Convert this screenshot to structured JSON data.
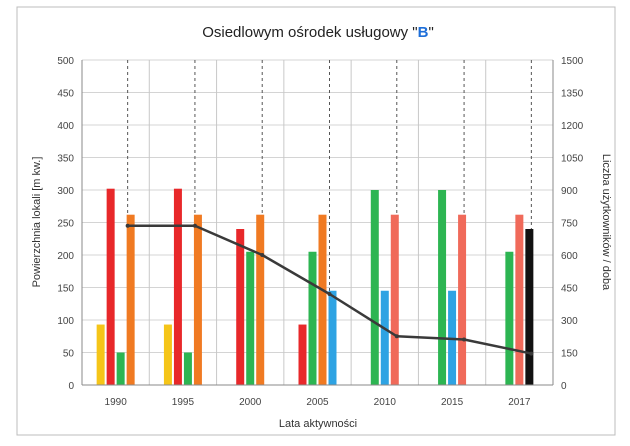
{
  "chart_data": {
    "type": "bar",
    "title_main": "Osiedlowym ośrodek usługowy \"",
    "title_letter": "B",
    "title_end": "\"",
    "xlabel": "Lata aktywności",
    "ylabel": "Powierzchnia lokali [m kw.]",
    "ylabel_right": "Liczba użytkowników / doba",
    "categories": [
      "1990",
      "1995",
      "2000",
      "2005",
      "2010",
      "2015",
      "2017"
    ],
    "ylim": [
      0,
      500
    ],
    "y_ticks": [
      "0",
      "50",
      "100",
      "150",
      "200",
      "250",
      "300",
      "350",
      "400",
      "450",
      "500"
    ],
    "ylim_right": [
      0,
      1500
    ],
    "y_ticks_right": [
      "0",
      "150",
      "300",
      "450",
      "600",
      "750",
      "900",
      "1050",
      "1200",
      "1350",
      "1500"
    ],
    "grid": true,
    "bars": [
      [
        {
          "value": 93,
          "color": "#f5c518"
        },
        {
          "value": 302,
          "color": "#e8282a"
        },
        {
          "value": 50,
          "color": "#2db552"
        },
        {
          "value": 262,
          "color": "#f07a22"
        }
      ],
      [
        {
          "value": 93,
          "color": "#f5c518"
        },
        {
          "value": 302,
          "color": "#e8282a"
        },
        {
          "value": 50,
          "color": "#2db552"
        },
        {
          "value": 262,
          "color": "#f07a22"
        }
      ],
      [
        {
          "value": 240,
          "color": "#e8282a"
        },
        {
          "value": 205,
          "color": "#2db552"
        },
        {
          "value": 262,
          "color": "#f07a22"
        }
      ],
      [
        {
          "value": 93,
          "color": "#e8282a"
        },
        {
          "value": 205,
          "color": "#2db552"
        },
        {
          "value": 262,
          "color": "#f07a22"
        },
        {
          "value": 145,
          "color": "#2ea3e3"
        }
      ],
      [
        {
          "value": 300,
          "color": "#2db552"
        },
        {
          "value": 145,
          "color": "#2ea3e3"
        },
        {
          "value": 262,
          "color": "#f06a5a"
        }
      ],
      [
        {
          "value": 300,
          "color": "#2db552"
        },
        {
          "value": 145,
          "color": "#2ea3e3"
        },
        {
          "value": 262,
          "color": "#f06a5a"
        }
      ],
      [
        {
          "value": 205,
          "color": "#2db552"
        },
        {
          "value": 262,
          "color": "#f06a5a"
        },
        {
          "value": 240,
          "color": "#111111"
        }
      ]
    ],
    "line": {
      "axis": "right",
      "color": "#3a3a3a",
      "points": [
        {
          "x": "1990",
          "y": 735
        },
        {
          "x": "1995",
          "y": 735
        },
        {
          "x": "2000",
          "y": 600
        },
        {
          "x": "2005",
          "y": 420
        },
        {
          "x": "2010",
          "y": 225
        },
        {
          "x": "2015",
          "y": 210
        },
        {
          "x": "2017",
          "y": 145
        }
      ]
    }
  }
}
